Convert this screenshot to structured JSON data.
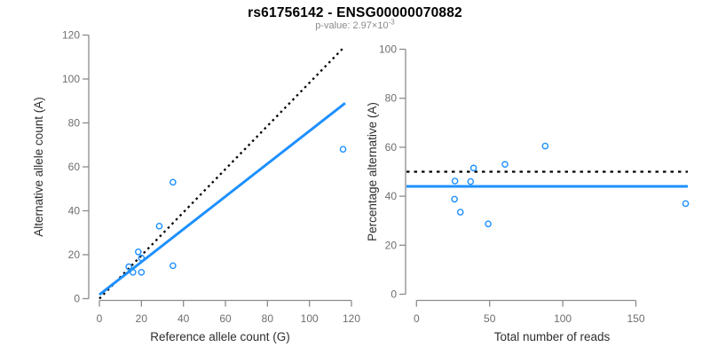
{
  "header": {
    "title": "rs61756142 - ENSG00000070882",
    "subtitle_prefix": "p-value: ",
    "p_value_mantissa": "2.97",
    "p_value_times_base": "×10",
    "p_value_exponent": "-3"
  },
  "colors": {
    "accent_blue": "#1E90FF",
    "dotted_black": "#000000",
    "axis_line": "#8c8c8c",
    "tick_text": "#6e6e6e",
    "axis_title_text": "#2e2e2e",
    "title_text": "#000000",
    "subtitle_text": "#8a8a8a"
  },
  "chart_data": [
    {
      "id": "allele-count-scatter",
      "type": "scatter",
      "xlabel": "Reference allele count (G)",
      "ylabel": "Alternative allele count (A)",
      "xlim": [
        0,
        120
      ],
      "ylim": [
        0,
        120
      ],
      "xticks": [
        0,
        20,
        40,
        60,
        80,
        100,
        120
      ],
      "yticks": [
        0,
        20,
        40,
        60,
        80,
        100,
        120
      ],
      "grid": false,
      "legend": null,
      "points": [
        [
          116,
          68
        ],
        [
          35,
          53
        ],
        [
          28.5,
          33
        ],
        [
          18.5,
          21.3
        ],
        [
          20,
          18.5
        ],
        [
          35,
          15
        ],
        [
          14,
          14.5
        ],
        [
          16,
          12
        ],
        [
          20,
          12
        ]
      ],
      "lines": [
        {
          "name": "identity-line",
          "kind": "segment",
          "style": "dotted",
          "color": "#000000",
          "from": [
            0,
            0
          ],
          "to": [
            116,
            114
          ]
        },
        {
          "name": "regression-line",
          "kind": "segment",
          "style": "solid",
          "color": "#1E90FF",
          "from": [
            0,
            1.8
          ],
          "to": [
            117,
            89
          ]
        }
      ]
    },
    {
      "id": "percentage-alternative-scatter",
      "type": "scatter",
      "xlabel": "Total number of reads",
      "ylabel": "Percentage alternative (A)",
      "xlim": [
        0,
        190
      ],
      "ylim": [
        0,
        100
      ],
      "xticks": [
        0,
        50,
        100,
        150
      ],
      "yticks": [
        0,
        20,
        40,
        60,
        80,
        100
      ],
      "grid": false,
      "legend": null,
      "points": [
        [
          184,
          37
        ],
        [
          88,
          60.5
        ],
        [
          60.5,
          53
        ],
        [
          39,
          51.5
        ],
        [
          37,
          46
        ],
        [
          26.3,
          46.2
        ],
        [
          26,
          38.8
        ],
        [
          30,
          33.5
        ],
        [
          49,
          28.7
        ]
      ],
      "lines": [
        {
          "name": "expected-50pct-line",
          "kind": "hline",
          "style": "dotted",
          "color": "#000000",
          "y": 50
        },
        {
          "name": "mean-percentage-line",
          "kind": "hline",
          "style": "solid",
          "color": "#1E90FF",
          "y": 44
        }
      ]
    }
  ]
}
